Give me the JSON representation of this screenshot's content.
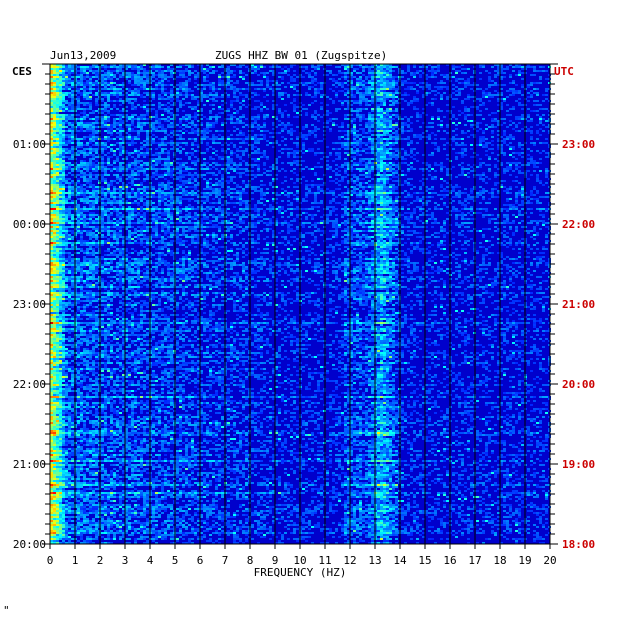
{
  "chart_data": {
    "type": "heatmap",
    "date": "Jun13,2009",
    "title": "ZUGS HHZ BW 01 (Zugspitze)",
    "xlabel": "FREQUENCY (HZ)",
    "left_axis_label": "CES",
    "right_axis_label": "UTC",
    "x_ticks": [
      "0",
      "1",
      "2",
      "3",
      "4",
      "5",
      "6",
      "7",
      "8",
      "9",
      "10",
      "11",
      "12",
      "13",
      "14",
      "15",
      "16",
      "17",
      "18",
      "19",
      "20"
    ],
    "xlim": [
      0,
      20
    ],
    "left_time_ticks": [
      "01:00",
      "00:00",
      "23:00",
      "22:00",
      "21:00",
      "20:00"
    ],
    "right_time_ticks": [
      "23:00",
      "22:00",
      "21:00",
      "20:00",
      "19:00",
      "18:00"
    ],
    "time_span_hours": 6,
    "grid": true,
    "colors": {
      "left_labels": "#000000",
      "right_labels": "#cc0000",
      "grid": "#000000",
      "background_band": "#0000cc"
    },
    "footnote": "\""
  }
}
